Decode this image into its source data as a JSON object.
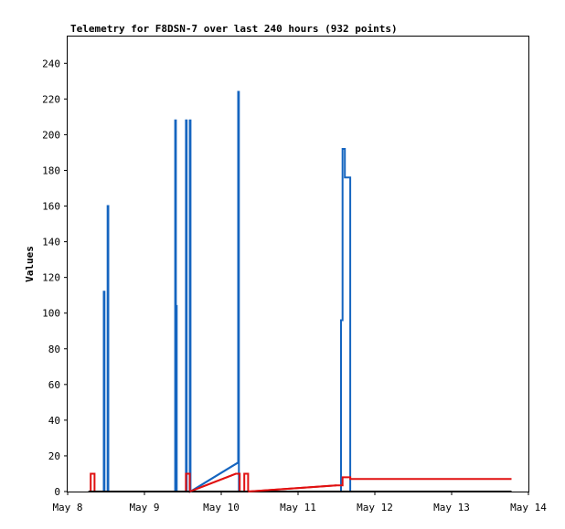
{
  "chart_data": {
    "type": "line",
    "title": "Telemetry for F8DSN-7 over last 240 hours (932 points)",
    "xlabel": "",
    "ylabel": "Values",
    "x_tick_labels": [
      "May 8",
      "May 9",
      "May 10",
      "May 11",
      "May 12",
      "May 13",
      "May 14"
    ],
    "y_ticks": [
      0,
      20,
      40,
      60,
      80,
      100,
      120,
      140,
      160,
      180,
      200,
      220,
      240
    ],
    "xlim": [
      8,
      14
    ],
    "ylim": [
      0,
      255
    ],
    "grid": false,
    "colors": {
      "blue": "#1565c0",
      "red": "#e01010",
      "black": "#000000"
    },
    "series": [
      {
        "color": "#1565c0",
        "points": [
          [
            8.47,
            0
          ],
          [
            8.47,
            112
          ],
          [
            8.48,
            112
          ],
          [
            8.48,
            0
          ],
          [
            8.52,
            0
          ],
          [
            8.52,
            160
          ],
          [
            8.53,
            160
          ],
          [
            8.53,
            0
          ],
          [
            9.4,
            0
          ],
          [
            9.4,
            208
          ],
          [
            9.41,
            208
          ],
          [
            9.41,
            104
          ],
          [
            9.42,
            104
          ],
          [
            9.42,
            0
          ],
          [
            9.54,
            0
          ],
          [
            9.54,
            208
          ],
          [
            9.55,
            208
          ],
          [
            9.55,
            0
          ],
          [
            9.59,
            0
          ],
          [
            9.59,
            208
          ],
          [
            9.6,
            208
          ],
          [
            9.6,
            0
          ],
          [
            10.21,
            16
          ],
          [
            10.22,
            16
          ],
          [
            10.22,
            224
          ],
          [
            10.23,
            224
          ],
          [
            10.23,
            0
          ],
          [
            11.56,
            0
          ],
          [
            11.56,
            96
          ],
          [
            11.58,
            96
          ],
          [
            11.58,
            192
          ],
          [
            11.61,
            192
          ],
          [
            11.61,
            176
          ],
          [
            11.63,
            176
          ],
          [
            11.63,
            176
          ],
          [
            11.68,
            176
          ],
          [
            11.68,
            0
          ]
        ]
      },
      {
        "color": "#e01010",
        "points": [
          [
            8.3,
            0
          ],
          [
            8.3,
            10
          ],
          [
            8.35,
            10
          ],
          [
            8.35,
            0
          ],
          [
            9.54,
            0
          ],
          [
            9.54,
            10
          ],
          [
            9.59,
            10
          ],
          [
            9.59,
            0
          ],
          [
            10.19,
            10
          ],
          [
            10.24,
            10
          ],
          [
            10.24,
            0
          ],
          [
            10.3,
            0
          ],
          [
            10.3,
            10
          ],
          [
            10.35,
            10
          ],
          [
            10.35,
            0
          ],
          [
            11.5,
            3.5
          ],
          [
            11.58,
            3.5
          ],
          [
            11.58,
            8
          ],
          [
            11.68,
            8
          ],
          [
            11.68,
            7
          ],
          [
            13.78,
            7
          ]
        ]
      },
      {
        "color": "#000000",
        "points": [
          [
            8.27,
            0
          ],
          [
            13.78,
            0
          ]
        ]
      },
      {
        "color": "#1565c0",
        "points": [
          [
            9.6,
            0
          ],
          [
            10.21,
            16
          ]
        ]
      },
      {
        "color": "#e01010",
        "points": [
          [
            9.59,
            0
          ],
          [
            10.19,
            10
          ]
        ]
      },
      {
        "color": "#e01010",
        "points": [
          [
            10.35,
            0
          ],
          [
            11.5,
            3.5
          ]
        ]
      }
    ]
  }
}
